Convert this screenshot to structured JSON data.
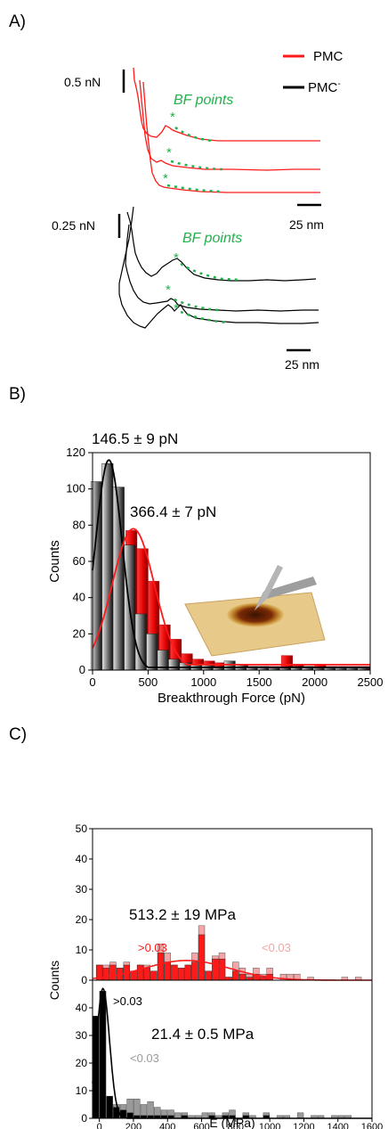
{
  "colors": {
    "red": "#ff1a1a",
    "black": "#000000",
    "green": "#22b04b",
    "pink": "#f4a6a6",
    "gray": "#9a9a9a",
    "darkgray": "#4a4a4a"
  },
  "panels": {
    "a": "A)",
    "b": "B)",
    "c": "C)"
  },
  "chart_data": [
    {
      "type": "line",
      "panel": "A",
      "title": "",
      "legend": [
        {
          "name": "PMC",
          "color": "#ff1a1a"
        },
        {
          "name": "PMC",
          "superscript": "-",
          "color": "#000000"
        }
      ],
      "annotations": {
        "top_scale_y": "0.5 nN",
        "top_scale_x": "25 nm",
        "top_bf": "BF points",
        "bottom_scale_y": "0.25 nN",
        "bottom_scale_x": "25 nm",
        "bottom_bf": "BF points",
        "marker": "*"
      },
      "series": [
        {
          "name": "PMC",
          "group": "top",
          "values": []
        },
        {
          "name": "PMC-",
          "group": "bottom",
          "values": []
        }
      ]
    },
    {
      "type": "bar",
      "panel": "B",
      "xlabel": "Breakthrough Force (pN)",
      "ylabel": "Counts",
      "xlim": [
        0,
        2500
      ],
      "ylim": [
        0,
        120
      ],
      "xticks": [
        0,
        500,
        1000,
        1500,
        2000,
        2500
      ],
      "yticks": [
        0,
        20,
        40,
        60,
        80,
        100,
        120
      ],
      "annotations": [
        "146.5 ± 9 pN",
        "366.4 ± 7 pN"
      ],
      "bin_width": 100,
      "series": [
        {
          "color": "red",
          "x": [
            50,
            150,
            250,
            350,
            450,
            550,
            650,
            750,
            850,
            950,
            1050,
            1150,
            1250,
            1350,
            1450,
            1550,
            1650,
            1750,
            1850,
            1950,
            2050,
            2150,
            2250,
            2350,
            2450
          ],
          "values": [
            32,
            53,
            64,
            77,
            67,
            49,
            25,
            17,
            9,
            6,
            5,
            4,
            3,
            3,
            2,
            2,
            2,
            8,
            3,
            2,
            3,
            2,
            2,
            2,
            2
          ]
        },
        {
          "color": "black",
          "x": [
            50,
            150,
            250,
            350,
            450,
            550,
            650,
            750,
            850,
            950,
            1050,
            1150,
            1250,
            1350,
            1450,
            1550,
            1650,
            1750,
            1850,
            1950,
            2050,
            2150,
            2250,
            2350,
            2450
          ],
          "values": [
            104,
            114,
            101,
            69,
            31,
            20,
            11,
            6,
            4,
            3,
            3,
            2,
            5,
            3,
            2,
            2,
            1,
            1,
            2,
            2,
            1,
            1,
            1,
            1,
            1
          ]
        }
      ],
      "fits": [
        {
          "color": "black",
          "peak_x": 146.5,
          "peak_y": 116
        },
        {
          "color": "red",
          "peak_x": 366.4,
          "peak_y": 78
        }
      ]
    },
    {
      "type": "bar",
      "panel": "C",
      "xlabel": "E (MPa)",
      "ylabel": "Counts",
      "xlim": [
        -40,
        1600
      ],
      "xticks": [
        0,
        200,
        400,
        600,
        800,
        1000,
        1200,
        1400,
        1600
      ],
      "top": {
        "ylim": [
          0,
          50
        ],
        "yticks": [
          0,
          10,
          20,
          30,
          40,
          50
        ],
        "annotation": "513.2 ± 19 MPa",
        "label_high": ">0.03",
        "label_low": "<0.03",
        "fit": {
          "peak_x": 513,
          "peak_y": 6.5,
          "sigma": 250
        },
        "bins": [
          [
            0,
            0,
            5
          ],
          [
            40,
            1,
            4
          ],
          [
            80,
            1,
            5
          ],
          [
            120,
            0,
            4
          ],
          [
            160,
            1,
            5
          ],
          [
            200,
            0,
            3
          ],
          [
            240,
            0,
            5
          ],
          [
            280,
            1,
            4
          ],
          [
            320,
            0,
            3
          ],
          [
            360,
            3,
            9
          ],
          [
            400,
            3,
            6
          ],
          [
            440,
            0,
            5
          ],
          [
            480,
            0,
            4
          ],
          [
            520,
            0,
            5
          ],
          [
            560,
            3,
            6
          ],
          [
            600,
            3,
            15
          ],
          [
            640,
            0,
            3
          ],
          [
            680,
            1,
            7
          ],
          [
            720,
            2,
            7
          ],
          [
            760,
            0,
            1
          ],
          [
            800,
            3,
            3
          ],
          [
            840,
            2,
            2
          ],
          [
            880,
            1,
            1
          ],
          [
            920,
            2,
            2
          ],
          [
            960,
            1,
            1
          ],
          [
            1000,
            2,
            2
          ],
          [
            1080,
            2,
            0
          ],
          [
            1120,
            2,
            0
          ],
          [
            1160,
            2,
            0
          ],
          [
            1240,
            1,
            0
          ],
          [
            1440,
            1,
            0
          ],
          [
            1520,
            1,
            0
          ]
        ]
      },
      "bottom": {
        "ylim": [
          0,
          50
        ],
        "yticks": [
          0,
          10,
          20,
          30,
          40
        ],
        "annotation": "21.4 ± 0.5 MPa",
        "label_high": ">0.03",
        "label_low": "<0.03",
        "fit": {
          "peak_x": 21.4,
          "peak_y": 47,
          "sigma": 38
        },
        "bins": [
          [
            -20,
            0,
            37
          ],
          [
            20,
            0,
            46
          ],
          [
            60,
            0,
            8
          ],
          [
            100,
            1,
            4
          ],
          [
            140,
            2,
            3
          ],
          [
            180,
            5,
            2
          ],
          [
            220,
            6,
            1
          ],
          [
            260,
            4,
            1
          ],
          [
            300,
            5,
            1
          ],
          [
            340,
            3,
            1
          ],
          [
            380,
            2,
            1
          ],
          [
            420,
            2,
            1
          ],
          [
            460,
            2,
            0
          ],
          [
            500,
            1,
            1
          ],
          [
            540,
            1,
            0
          ],
          [
            580,
            1,
            0
          ],
          [
            620,
            2,
            0
          ],
          [
            660,
            1,
            1
          ],
          [
            700,
            1,
            0
          ],
          [
            740,
            1,
            1
          ],
          [
            780,
            2,
            1
          ],
          [
            860,
            1,
            1
          ],
          [
            900,
            1,
            0
          ],
          [
            980,
            1,
            1
          ],
          [
            1060,
            1,
            0
          ],
          [
            1100,
            1,
            0
          ],
          [
            1180,
            2,
            0
          ],
          [
            1260,
            1,
            0
          ],
          [
            1300,
            1,
            0
          ],
          [
            1380,
            1,
            0
          ],
          [
            1420,
            1,
            0
          ],
          [
            1460,
            1,
            0
          ]
        ]
      }
    }
  ]
}
